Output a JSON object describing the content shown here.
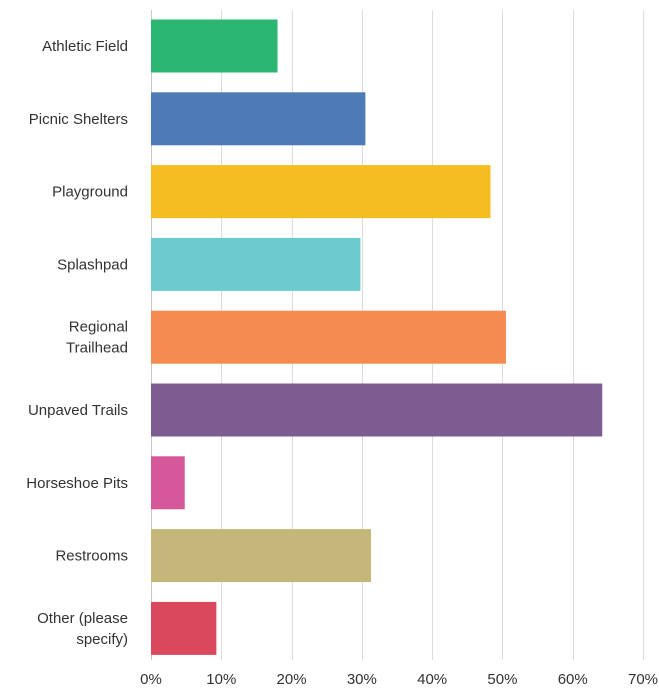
{
  "chart_data": {
    "type": "bar",
    "orientation": "horizontal",
    "categories": [
      "Athletic Field",
      "Picnic Shelters",
      "Playground",
      "Splashpad",
      "Regional Trailhead",
      "Unpaved Trails",
      "Horseshoe Pits",
      "Restrooms",
      "Other (please specify)"
    ],
    "category_lines": [
      [
        "Athletic Field"
      ],
      [
        "Picnic Shelters"
      ],
      [
        "Playground"
      ],
      [
        "Splashpad"
      ],
      [
        "Regional",
        "Trailhead"
      ],
      [
        "Unpaved Trails"
      ],
      [
        "Horseshoe Pits"
      ],
      [
        "Restrooms"
      ],
      [
        "Other (please",
        "specify)"
      ]
    ],
    "values": [
      18,
      30.5,
      48.3,
      29.8,
      50.5,
      64.2,
      4.8,
      31.3,
      9.3
    ],
    "colors": [
      "#2bb673",
      "#4f7ab8",
      "#f5bd1f",
      "#6ccbcc",
      "#f58b4f",
      "#7d5c91",
      "#d5589b",
      "#c5b77a",
      "#d9485c"
    ],
    "xlim": [
      0,
      70
    ],
    "xticks": [
      0,
      10,
      20,
      30,
      40,
      50,
      60,
      70
    ],
    "xtick_labels": [
      "0%",
      "10%",
      "20%",
      "30%",
      "40%",
      "50%",
      "60%",
      "70%"
    ],
    "grid": true,
    "title": "",
    "xlabel": "",
    "ylabel": ""
  }
}
